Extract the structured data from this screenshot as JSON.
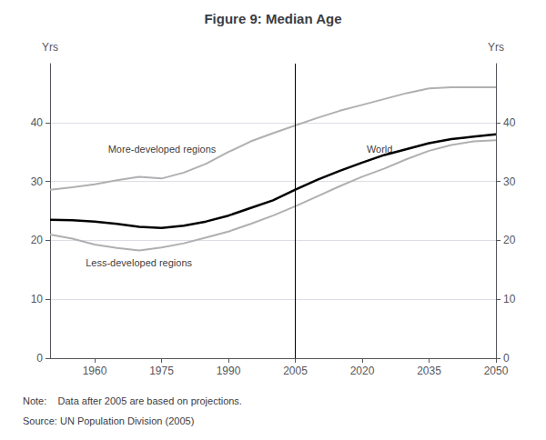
{
  "chart_data": {
    "type": "line",
    "title": "Figure 9: Median Age",
    "ylabel": "Yrs",
    "y2label": "Yrs",
    "x": [
      1950,
      1955,
      1960,
      1965,
      1970,
      1975,
      1980,
      1985,
      1990,
      1995,
      2000,
      2005,
      2010,
      2015,
      2020,
      2025,
      2030,
      2035,
      2040,
      2045,
      2050
    ],
    "series": [
      {
        "name": "World",
        "color": "#000000",
        "values": [
          23.5,
          23.4,
          23.2,
          22.8,
          22.3,
          22.1,
          22.5,
          23.2,
          24.2,
          25.5,
          26.8,
          28.6,
          30.3,
          31.8,
          33.2,
          34.5,
          35.5,
          36.5,
          37.2,
          37.6,
          38.0
        ]
      },
      {
        "name": "More-developed regions",
        "color": "#b0b0b0",
        "values": [
          28.6,
          29.0,
          29.5,
          30.2,
          30.8,
          30.5,
          31.5,
          33.0,
          35.0,
          36.8,
          38.2,
          39.5,
          40.8,
          42.0,
          43.0,
          44.0,
          45.0,
          45.8,
          46.0,
          46.0,
          46.0
        ]
      },
      {
        "name": "Less-developed regions",
        "color": "#b0b0b0",
        "values": [
          21.0,
          20.3,
          19.3,
          18.7,
          18.3,
          18.8,
          19.5,
          20.5,
          21.5,
          22.8,
          24.2,
          25.8,
          27.5,
          29.2,
          30.8,
          32.2,
          33.8,
          35.2,
          36.2,
          36.8,
          37.0
        ]
      }
    ],
    "xlim": [
      1950,
      2050
    ],
    "xticks": [
      1960,
      1975,
      1990,
      2005,
      2020,
      2035,
      2050
    ],
    "ylim": [
      0,
      50
    ],
    "yticks": [
      0,
      10,
      20,
      30,
      40
    ],
    "y2lim": [
      0,
      50
    ],
    "y2ticks": [
      0,
      10,
      20,
      30,
      40
    ],
    "grid": true,
    "vertical_line": 2005,
    "annotations": [
      {
        "text": "More-developed regions",
        "x": 1963,
        "y": 35.5
      },
      {
        "text": "Less-developed regions",
        "x": 1958,
        "y": 16.2
      },
      {
        "text": "World",
        "x": 2021,
        "y": 35.5
      }
    ],
    "notes": [
      "Note:    Data after 2005 are based on projections.",
      "Source: UN Population Division (2005)"
    ]
  }
}
